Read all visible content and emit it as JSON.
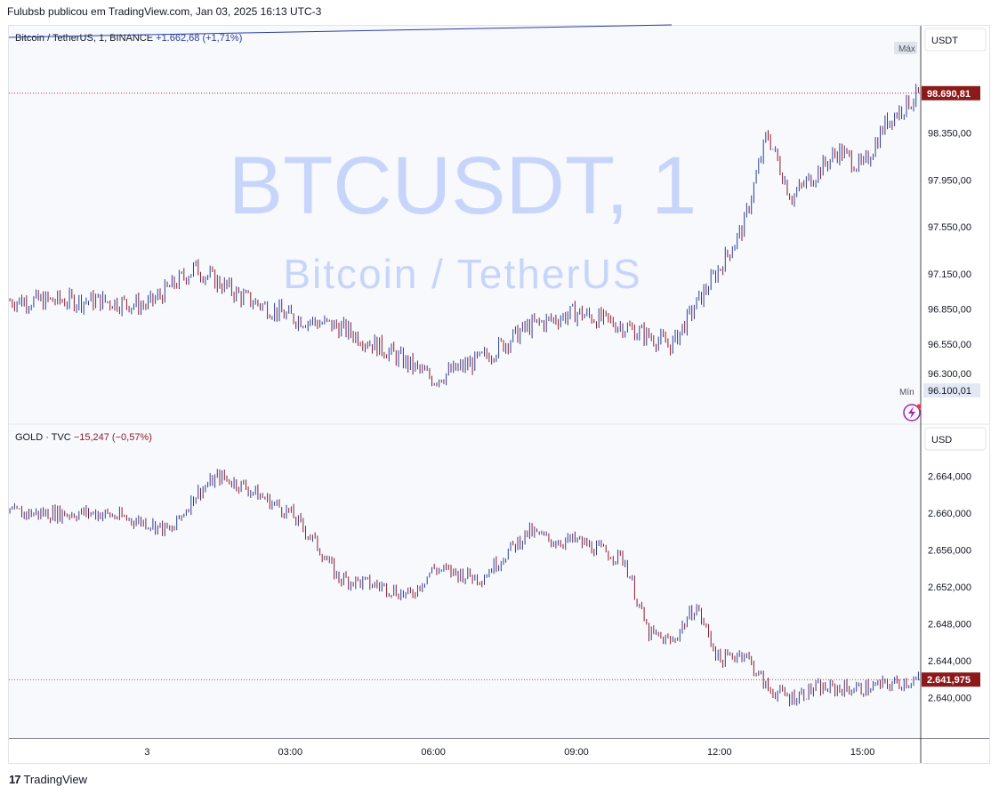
{
  "header": {
    "publish_line": "Fulubsb publicou em TradingView.com, Jan 03, 2025 16:13 UTC-3"
  },
  "footer": {
    "brand": "TradingView"
  },
  "colors": {
    "up": "#2a3f9c",
    "down": "#8c1c2b",
    "watermark": "#c8d5fb",
    "price_tag": "#8b1a1a",
    "axis_text": "#131722",
    "grid_bg": "#f8f9fd"
  },
  "chart_data": [
    {
      "type": "line",
      "symbol_line": "Bitcoin / TetherUS, 1, BINANCE",
      "change_text": "+1.662,68 (+1,71%)",
      "watermark_main": "BTCUSDT, 1",
      "watermark_sub": "Bitcoin / TetherUS",
      "currency": "USDT",
      "last_price_label": "98.690,81",
      "max_marker": "Máx",
      "min_marker": "Mín",
      "min_price_label": "96.100,01",
      "last_price": 98690.81,
      "ylim": [
        95950,
        99190
      ],
      "yticks": [
        98350,
        97950,
        97550,
        97150,
        96850,
        96550,
        96300
      ],
      "ytick_labels": [
        "98.350,00",
        "97.950,00",
        "97.550,00",
        "97.150,00",
        "96.850,00",
        "96.550,00",
        "96.300,00"
      ],
      "x_hours": [
        -1,
        0,
        1,
        2,
        3,
        4,
        5,
        6,
        7,
        8,
        9,
        10,
        11,
        11.5,
        12,
        12.5,
        13,
        13.5,
        14,
        14.5,
        15,
        15.5,
        16.2
      ],
      "close": [
        96920,
        96880,
        97200,
        96950,
        96780,
        96700,
        96500,
        96250,
        96420,
        96700,
        96820,
        96700,
        96540,
        96880,
        97200,
        97550,
        98350,
        97800,
        98000,
        98200,
        98050,
        98450,
        98690
      ]
    },
    {
      "type": "line",
      "symbol_line": "GOLD · TVC",
      "change_text": "−15,247 (−0,57%)",
      "currency": "USD",
      "last_price_label": "2.641,975",
      "last_price": 2641.975,
      "ylim": [
        2636.6,
        2668.6
      ],
      "yticks": [
        2664,
        2660,
        2656,
        2652,
        2648,
        2644,
        2640
      ],
      "ytick_labels": [
        "2.664,000",
        "2.660,000",
        "2.656,000",
        "2.652,000",
        "2.648,000",
        "2.644,000",
        "2.640,000"
      ],
      "x_hours": [
        -1,
        0,
        0.5,
        1,
        1.5,
        2,
        3,
        3.5,
        4,
        5,
        5.5,
        6,
        7,
        8,
        8.5,
        9,
        10,
        10.5,
        11,
        11.5,
        12,
        12.5,
        13,
        13.5,
        14,
        15,
        16.2
      ],
      "close": [
        2660,
        2659,
        2658,
        2662,
        2664,
        2663,
        2660,
        2657,
        2653,
        2652,
        2651,
        2654,
        2653,
        2658,
        2657,
        2657,
        2655,
        2647,
        2646,
        2650,
        2644,
        2645,
        2641,
        2640,
        2641,
        2641,
        2642
      ]
    }
  ],
  "x_axis": {
    "ticks": [
      0,
      3,
      6,
      9,
      12,
      15
    ],
    "labels": [
      "3",
      "03:00",
      "06:00",
      "09:00",
      "12:00",
      "15:00"
    ],
    "x_range_hours": [
      -2.9,
      16.2
    ]
  }
}
